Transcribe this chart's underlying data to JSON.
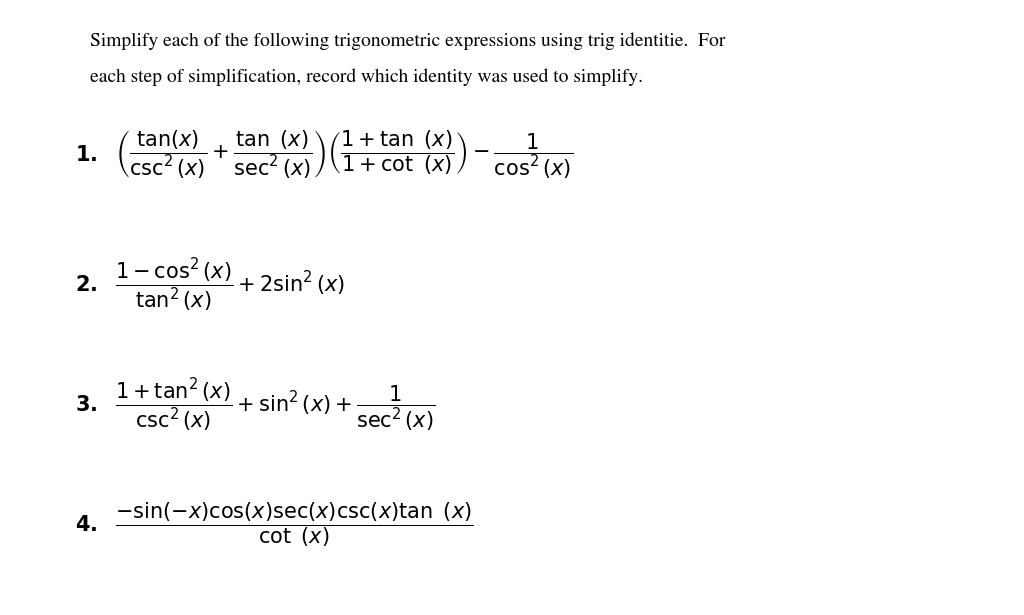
{
  "background_color": "#ffffff",
  "title_line1": "Simplify each of the following trigonometric expressions using trig identitie.  For",
  "title_line2": "each step of simplification, record which identity was used to simplify.",
  "font_color": "#000000",
  "title_fontsize": 14,
  "math_fontsize": 15,
  "label_fontsize": 15,
  "fig_width": 10.24,
  "fig_height": 6.15,
  "dpi": 100
}
